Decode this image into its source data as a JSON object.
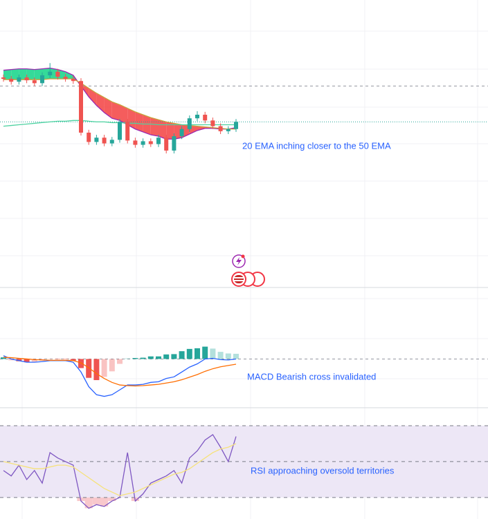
{
  "chart_data": [
    {
      "type": "candlestick",
      "annotation": "20 EMA inching closer to the 50 EMA",
      "ylim": [
        40,
        80
      ],
      "up_color": "#26a69a",
      "down_color": "#ef5350",
      "open": [
        69.2,
        69.0,
        68.6,
        69.2,
        68.8,
        68.4,
        69.5,
        70.0,
        69.3,
        69.0,
        68.7,
        61.5,
        60.2,
        60.8,
        60.0,
        60.5,
        63.0,
        60.4,
        59.8,
        60.3,
        59.9,
        60.8,
        59.0,
        61.0,
        62.0,
        63.5,
        64.0,
        63.2,
        62.4,
        61.7,
        62.0
      ],
      "high": [
        69.6,
        69.4,
        69.6,
        69.6,
        69.2,
        69.9,
        71.2,
        70.4,
        69.7,
        69.4,
        69.1,
        61.9,
        61.2,
        61.2,
        60.9,
        63.4,
        63.4,
        60.8,
        60.7,
        60.7,
        61.2,
        61.2,
        61.4,
        62.4,
        63.9,
        64.5,
        64.4,
        63.6,
        62.8,
        62.4,
        63.4
      ],
      "low": [
        68.6,
        68.2,
        68.2,
        68.4,
        68.0,
        68.0,
        69.1,
        68.9,
        68.6,
        68.3,
        61.1,
        59.8,
        59.8,
        59.6,
        59.6,
        60.1,
        60.0,
        59.4,
        59.4,
        59.5,
        59.5,
        58.6,
        58.6,
        60.6,
        61.6,
        63.1,
        62.8,
        62.0,
        61.3,
        61.3,
        61.6
      ],
      "close": [
        69.0,
        68.6,
        69.2,
        68.8,
        68.4,
        69.5,
        70.0,
        69.3,
        69.0,
        68.7,
        61.5,
        60.2,
        60.8,
        60.0,
        60.5,
        63.0,
        60.4,
        59.8,
        60.3,
        59.9,
        60.8,
        59.0,
        61.0,
        62.0,
        63.5,
        64.0,
        63.2,
        62.4,
        61.7,
        62.0,
        63.0
      ],
      "series": [
        {
          "color": "#9c27b0",
          "values": [
            70.2,
            70.3,
            70.4,
            70.4,
            70.3,
            70.4,
            70.5,
            70.3,
            70.0,
            69.5,
            68.0,
            66.5,
            65.3,
            64.3,
            63.5,
            63.2,
            62.6,
            62.0,
            61.6,
            61.2,
            61.0,
            60.6,
            60.6,
            60.8,
            61.3,
            61.8,
            62.1,
            62.1,
            62.0,
            62.0,
            62.2
          ]
        },
        {
          "color": "#c8a23a",
          "values": [
            68.9,
            68.9,
            68.9,
            68.9,
            68.9,
            68.9,
            69.0,
            69.0,
            69.0,
            69.0,
            68.4,
            67.7,
            67.0,
            66.4,
            65.8,
            65.4,
            64.9,
            64.4,
            64.0,
            63.6,
            63.3,
            63.0,
            62.8,
            62.6,
            62.5,
            62.4,
            62.3,
            62.2,
            62.1,
            62.0,
            62.0
          ]
        },
        {
          "color": "#4cd2a0",
          "values": [
            62.4,
            62.5,
            62.6,
            62.7,
            62.8,
            62.9,
            63.0,
            63.1,
            63.1,
            63.2,
            63.2,
            63.1,
            63.0,
            63.0,
            62.9,
            62.9,
            62.8,
            62.8,
            62.7,
            62.7,
            62.6,
            62.6,
            62.6,
            62.6,
            62.6,
            62.6,
            62.6,
            62.6,
            62.6,
            62.6,
            62.6
          ]
        }
      ],
      "fill_up_color": "#1fd68e",
      "fill_down_color": "#f44b4b",
      "hlines": [
        68.0
      ]
    },
    {
      "type": "macd",
      "annotation": "MACD Bearish cross invalidated",
      "ylim": [
        -1.5,
        2.2
      ],
      "levels": [
        0
      ],
      "series": [
        {
          "color": "#2962ff",
          "values": [
            0.1,
            0.0,
            -0.05,
            -0.1,
            -0.1,
            -0.08,
            -0.05,
            -0.05,
            -0.05,
            -0.1,
            -0.4,
            -0.85,
            -1.1,
            -1.15,
            -1.1,
            -0.95,
            -0.8,
            -0.8,
            -0.78,
            -0.72,
            -0.7,
            -0.6,
            -0.55,
            -0.4,
            -0.25,
            -0.15,
            0.0,
            0.02,
            -0.02,
            -0.03,
            0.0
          ]
        },
        {
          "color": "#ff6d00",
          "values": [
            0.05,
            0.04,
            0.02,
            0.0,
            -0.02,
            -0.03,
            -0.04,
            -0.04,
            -0.04,
            -0.05,
            -0.12,
            -0.27,
            -0.45,
            -0.6,
            -0.72,
            -0.8,
            -0.82,
            -0.83,
            -0.82,
            -0.8,
            -0.78,
            -0.74,
            -0.7,
            -0.64,
            -0.56,
            -0.48,
            -0.38,
            -0.3,
            -0.24,
            -0.2,
            -0.16
          ]
        }
      ],
      "histogram": [
        0.05,
        -0.04,
        -0.07,
        -0.1,
        -0.08,
        -0.05,
        -0.01,
        -0.01,
        -0.01,
        -0.05,
        -0.28,
        -0.58,
        -0.65,
        -0.55,
        -0.38,
        -0.15,
        0.02,
        0.03,
        0.04,
        0.08,
        0.08,
        0.14,
        0.15,
        0.24,
        0.31,
        0.33,
        0.38,
        0.32,
        0.22,
        0.17,
        0.16
      ],
      "up_color": "#26a69a",
      "down_color": "#ef5350"
    },
    {
      "type": "rsi",
      "annotation": "RSI approaching oversold territories",
      "ylim": [
        18,
        80
      ],
      "levels": [
        70,
        50,
        30
      ],
      "band_color": "#ede7f6",
      "oversold_color": "#f8c8cc",
      "series": [
        {
          "color": "#7e57c2",
          "values": [
            45,
            42,
            48,
            40,
            45,
            38,
            55,
            52,
            50,
            48,
            28,
            24,
            26,
            25,
            28,
            30,
            55,
            28,
            32,
            38,
            40,
            42,
            45,
            38,
            52,
            56,
            62,
            65,
            58,
            50,
            64
          ]
        },
        {
          "color": "#f6e27a",
          "values": [
            50,
            49,
            48,
            47,
            46,
            46,
            47,
            48,
            48,
            47,
            44,
            41,
            38,
            35,
            33,
            31,
            32,
            33,
            35,
            37,
            39,
            41,
            43,
            44,
            46,
            49,
            52,
            55,
            57,
            58,
            60
          ]
        }
      ]
    }
  ]
}
